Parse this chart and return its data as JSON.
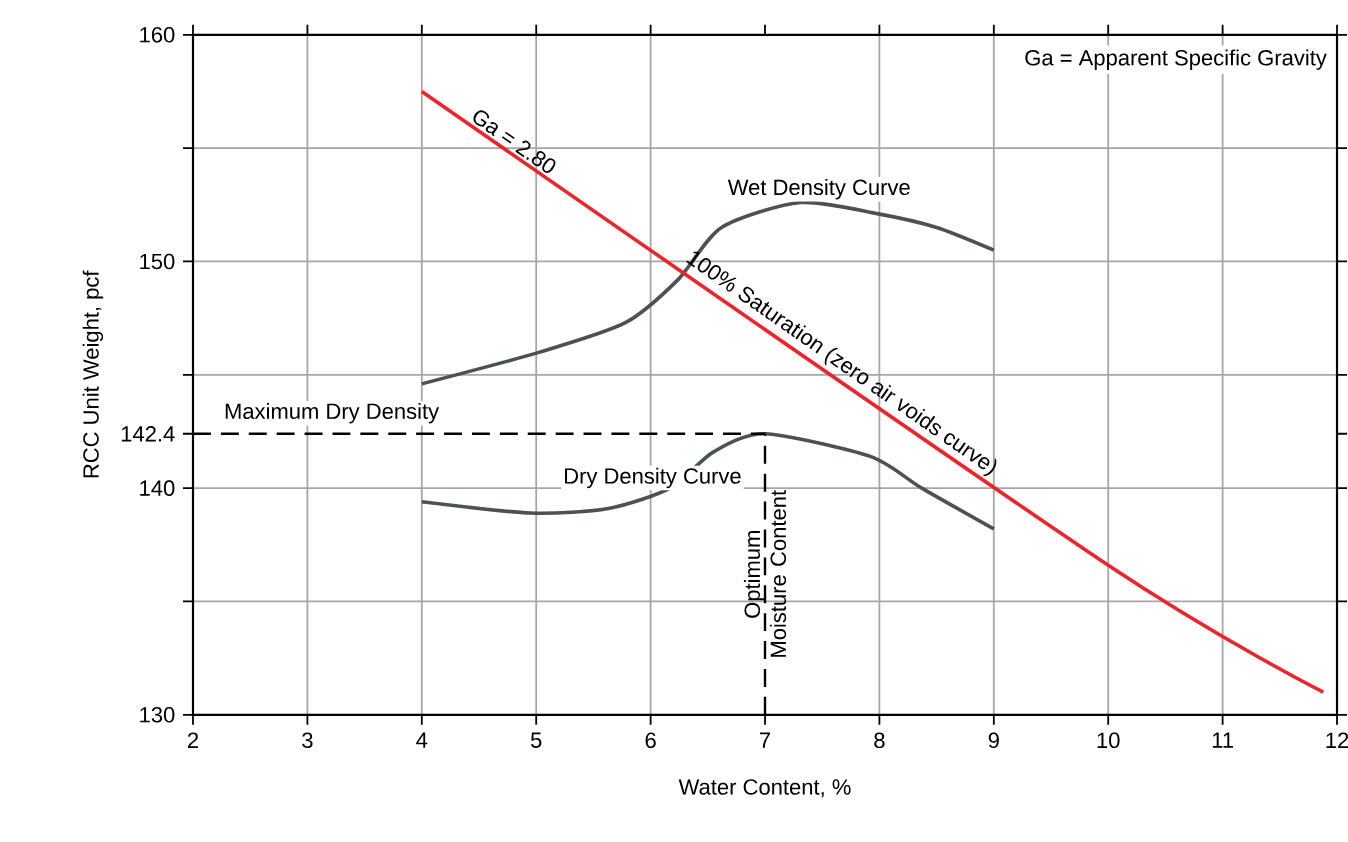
{
  "chart_data": {
    "type": "line",
    "xlabel": "Water Content, %",
    "ylabel": "RCC Unit Weight, pcf",
    "xlim": [
      2,
      12
    ],
    "ylim": [
      130,
      160
    ],
    "xticks": [
      2,
      3,
      4,
      5,
      6,
      7,
      8,
      9,
      10,
      11,
      12
    ],
    "yticks": [
      130,
      {
        "value": 135,
        "label": null
      },
      140,
      142.4,
      {
        "value": 145,
        "label": null
      },
      150,
      {
        "value": 155,
        "label": null
      },
      160
    ],
    "grid": true,
    "marker": "none",
    "line_style": "solid",
    "series": [
      {
        "name": "Wet Density Curve",
        "color": "#4a5352",
        "x": [
          4,
          5.03,
          5.78,
          6.24,
          6.62,
          7.31,
          7.99,
          8.5,
          9
        ],
        "values": [
          144.6,
          146.0,
          147.3,
          149.2,
          151.5,
          152.6,
          152.1,
          151.5,
          150.5
        ]
      },
      {
        "name": "Dry Density Curve",
        "color": "#4a5352",
        "x": [
          4,
          4.95,
          5.63,
          6.17,
          6.55,
          7.0,
          7.92,
          8.37,
          9
        ],
        "values": [
          139.4,
          138.9,
          139.1,
          140.0,
          141.6,
          142.4,
          141.4,
          140.0,
          138.2
        ]
      },
      {
        "color": "#e8262b",
        "x": [
          4,
          10,
          11.88
        ],
        "values": [
          157.5,
          136.6,
          131.0
        ]
      }
    ],
    "ref_lines": [
      {
        "axis": "y",
        "value": 142.4,
        "label": "Maximum Dry Density",
        "line_style": "dashed"
      },
      {
        "axis": "x",
        "value": 7,
        "label": "Optimum Moisture Content",
        "line_style": "dashed"
      }
    ],
    "annotations": [
      "Ga = Apparent Specific Gravity",
      {
        "text": "Ga = 2.80",
        "x": 4.75,
        "y": 154.9
      },
      {
        "text": "100% Saturation (zero air voids curve)",
        "x": 7.6,
        "y": 145.0
      }
    ]
  }
}
